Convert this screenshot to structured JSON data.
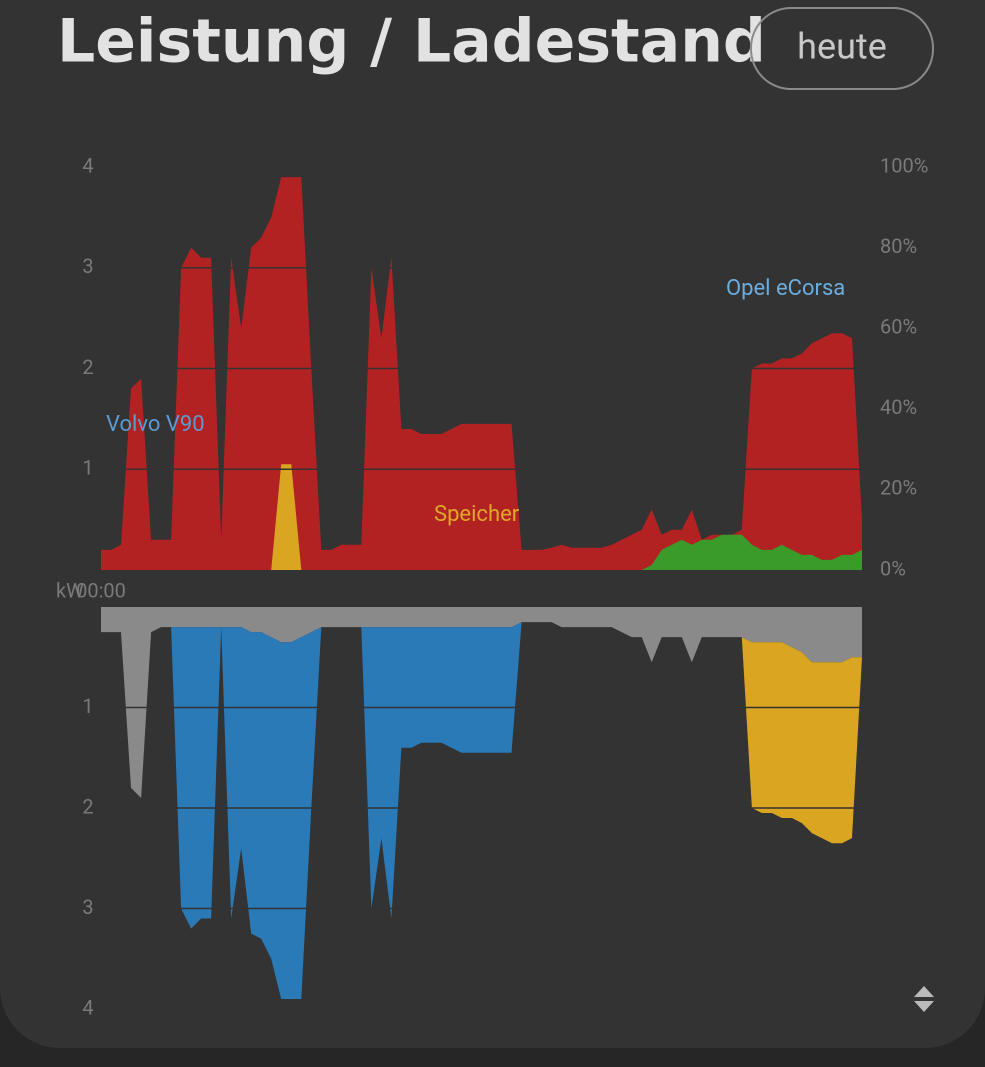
{
  "header": {
    "title": "Leistung / Ladestand",
    "button": "heute"
  },
  "chart_data": [
    {
      "type": "area",
      "ylabel": "kW",
      "annotations": [
        "Volvo V90",
        "Speicher",
        "Opel eCorsa"
      ],
      "categories": [
        "00:00",
        null,
        null,
        null,
        null,
        null,
        null,
        null,
        null,
        null,
        null,
        null,
        null,
        null,
        null,
        null,
        null,
        null,
        null,
        null,
        null,
        null,
        null,
        null,
        null,
        null,
        null,
        null,
        null,
        null,
        null,
        null,
        null,
        null,
        null,
        null,
        null,
        null,
        null,
        null,
        null,
        null,
        null,
        null,
        null,
        null,
        null,
        null,
        null,
        null,
        null,
        null,
        null,
        null,
        null,
        null,
        null,
        null,
        null,
        null,
        null,
        null,
        null,
        null,
        null,
        null,
        null,
        null,
        null,
        null,
        null,
        null,
        null,
        null,
        null,
        null,
        null
      ],
      "ylim": [
        0,
        4
      ],
      "yticks": [
        1,
        2,
        3,
        4
      ],
      "y2lim": [
        0,
        100
      ],
      "y2ticks": [
        {
          "value": 0,
          "label": "0%"
        },
        {
          "value": 20,
          "label": "20%"
        },
        {
          "value": 40,
          "label": "40%"
        },
        {
          "value": 60,
          "label": "60%"
        },
        {
          "value": 80,
          "label": "80%"
        },
        {
          "value": 100,
          "label": "100%"
        }
      ],
      "grid": true,
      "stacked": false,
      "inverted": false,
      "series": [
        {
          "color": "#b22222",
          "values": [
            0.2,
            0.2,
            0.25,
            1.8,
            1.9,
            0.3,
            0.3,
            0.3,
            3.0,
            3.2,
            3.1,
            3.1,
            0.3,
            3.1,
            2.4,
            3.2,
            3.3,
            3.5,
            3.9,
            3.9,
            3.9,
            2.0,
            0.2,
            0.2,
            0.25,
            0.25,
            0.25,
            3.0,
            2.3,
            3.1,
            1.4,
            1.4,
            1.35,
            1.35,
            1.35,
            1.4,
            1.45,
            1.45,
            1.45,
            1.45,
            1.45,
            1.45,
            0.2,
            0.2,
            0.2,
            0.22,
            0.25,
            0.22,
            0.22,
            0.22,
            0.22,
            0.25,
            0.3,
            0.35,
            0.4,
            0.6,
            0.35,
            0.4,
            0.4,
            0.6,
            0.3,
            0.35,
            0.35,
            0.35,
            0.4,
            2.0,
            2.05,
            2.05,
            2.1,
            2.1,
            2.15,
            2.25,
            2.3,
            2.35,
            2.35,
            2.3,
            0.5
          ]
        },
        {
          "color": "#daa520",
          "values": [
            0,
            0,
            0,
            0,
            0,
            0,
            0,
            0,
            0,
            0,
            0,
            0,
            0,
            0,
            0,
            0,
            0,
            0,
            1.05,
            1.05,
            0,
            0,
            0,
            0,
            0,
            0,
            0,
            0,
            0,
            0,
            0,
            0,
            0,
            0,
            0,
            0,
            0,
            0,
            0,
            0,
            0,
            0,
            0,
            0,
            0,
            0,
            0,
            0,
            0,
            0,
            0,
            0,
            0,
            0,
            0,
            0,
            0,
            0,
            0,
            0,
            0,
            0,
            0,
            0,
            0,
            0,
            0,
            0,
            0,
            0,
            0,
            0,
            0,
            0,
            0,
            0,
            0
          ]
        },
        {
          "color": "#3a9a2a",
          "values": [
            0,
            0,
            0,
            0,
            0,
            0,
            0,
            0,
            0,
            0,
            0,
            0,
            0,
            0,
            0,
            0,
            0,
            0,
            0,
            0,
            0,
            0,
            0,
            0,
            0,
            0,
            0,
            0,
            0,
            0,
            0,
            0,
            0,
            0,
            0,
            0,
            0,
            0,
            0,
            0,
            0,
            0,
            0,
            0,
            0,
            0,
            0,
            0,
            0,
            0,
            0,
            0,
            0,
            0,
            0,
            0.05,
            0.2,
            0.25,
            0.3,
            0.25,
            0.3,
            0.3,
            0.35,
            0.35,
            0.35,
            0.25,
            0.2,
            0.2,
            0.25,
            0.2,
            0.15,
            0.15,
            0.1,
            0.1,
            0.15,
            0.15,
            0.2
          ]
        }
      ]
    },
    {
      "type": "area",
      "ylim": [
        0,
        4
      ],
      "yticks": [
        1,
        2,
        3,
        4
      ],
      "grid": true,
      "stacked": true,
      "inverted": true,
      "series": [
        {
          "color": "#8a8a8a",
          "values": [
            0.25,
            0.25,
            0.25,
            1.8,
            1.9,
            0.25,
            0.2,
            0.2,
            0.2,
            0.2,
            0.2,
            0.2,
            0.2,
            0.2,
            0.2,
            0.25,
            0.25,
            0.3,
            0.35,
            0.35,
            0.3,
            0.25,
            0.2,
            0.2,
            0.2,
            0.2,
            0.2,
            0.2,
            0.2,
            0.2,
            0.2,
            0.2,
            0.2,
            0.2,
            0.2,
            0.2,
            0.2,
            0.2,
            0.2,
            0.2,
            0.2,
            0.2,
            0.15,
            0.15,
            0.15,
            0.15,
            0.2,
            0.2,
            0.2,
            0.2,
            0.2,
            0.2,
            0.25,
            0.3,
            0.3,
            0.55,
            0.3,
            0.3,
            0.3,
            0.55,
            0.3,
            0.3,
            0.3,
            0.3,
            0.3,
            0.35,
            0.35,
            0.35,
            0.35,
            0.4,
            0.45,
            0.55,
            0.55,
            0.55,
            0.55,
            0.5,
            0.5
          ]
        },
        {
          "color": "#2a7ab8",
          "values": [
            0,
            0,
            0,
            0,
            0,
            0,
            0,
            0,
            2.8,
            3.0,
            2.9,
            2.9,
            0,
            2.9,
            2.2,
            3.0,
            3.05,
            3.2,
            3.55,
            3.55,
            3.6,
            1.75,
            0,
            0,
            0,
            0,
            0,
            2.8,
            2.1,
            2.9,
            1.2,
            1.2,
            1.15,
            1.15,
            1.15,
            1.2,
            1.25,
            1.25,
            1.25,
            1.25,
            1.25,
            1.25,
            0,
            0,
            0,
            0,
            0,
            0,
            0,
            0,
            0,
            0,
            0,
            0,
            0,
            0,
            0,
            0,
            0,
            0,
            0,
            0,
            0,
            0,
            0,
            0,
            0,
            0,
            0,
            0,
            0,
            0,
            0,
            0,
            0,
            0,
            0
          ]
        },
        {
          "color": "#daa520",
          "values": [
            0,
            0,
            0,
            0,
            0,
            0,
            0,
            0,
            0,
            0,
            0,
            0,
            0,
            0,
            0,
            0,
            0,
            0,
            0,
            0,
            0,
            0,
            0,
            0,
            0,
            0,
            0,
            0,
            0,
            0,
            0,
            0,
            0,
            0,
            0,
            0,
            0,
            0,
            0,
            0,
            0,
            0,
            0,
            0,
            0,
            0,
            0,
            0,
            0,
            0,
            0,
            0,
            0,
            0,
            0,
            0,
            0,
            0,
            0,
            0,
            0,
            0,
            0,
            0,
            0,
            1.65,
            1.7,
            1.7,
            1.75,
            1.7,
            1.7,
            1.7,
            1.75,
            1.8,
            1.8,
            1.8,
            0
          ]
        }
      ]
    }
  ]
}
